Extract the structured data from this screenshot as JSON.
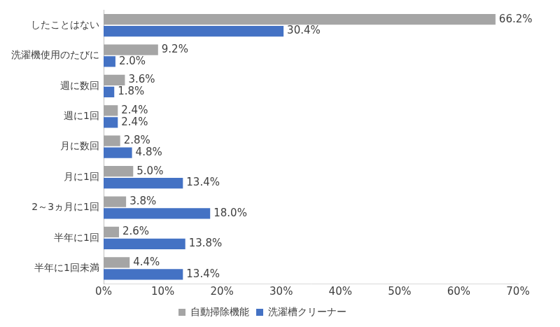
{
  "chart_data": {
    "type": "bar",
    "orientation": "horizontal",
    "categories": [
      "したことはない",
      "洗濯機使用のたびに",
      "週に数回",
      "週に1回",
      "月に数回",
      "月に1回",
      "2～3ヵ月に1回",
      "半年に1回",
      "半年に1回未満"
    ],
    "series": [
      {
        "name": "自動掃除機能",
        "color": "#a5a5a5",
        "values": [
          66.2,
          9.2,
          3.6,
          2.4,
          2.8,
          5.0,
          3.8,
          2.6,
          4.4
        ],
        "value_labels": [
          "66.2%",
          "9.2%",
          "3.6%",
          "2.4%",
          "2.8%",
          "5.0%",
          "3.8%",
          "2.6%",
          "4.4%"
        ]
      },
      {
        "name": "洗濯槽クリーナー",
        "color": "#4472c4",
        "values": [
          30.4,
          2.0,
          1.8,
          2.4,
          4.8,
          13.4,
          18.0,
          13.8,
          13.4
        ],
        "value_labels": [
          "30.4%",
          "2.0%",
          "1.8%",
          "2.4%",
          "4.8%",
          "13.4%",
          "18.0%",
          "13.8%",
          "13.4%"
        ]
      }
    ],
    "xlim": [
      0,
      70
    ],
    "xticks": [
      {
        "value": 0,
        "label": "0%"
      },
      {
        "value": 10,
        "label": "10%"
      },
      {
        "value": 20,
        "label": "20%"
      },
      {
        "value": 30,
        "label": "30%"
      },
      {
        "value": 40,
        "label": "40%"
      },
      {
        "value": 50,
        "label": "50%"
      },
      {
        "value": 60,
        "label": "60%"
      },
      {
        "value": 70,
        "label": "70%"
      }
    ],
    "grid": false,
    "legend": "bottom",
    "data_labels": true
  }
}
